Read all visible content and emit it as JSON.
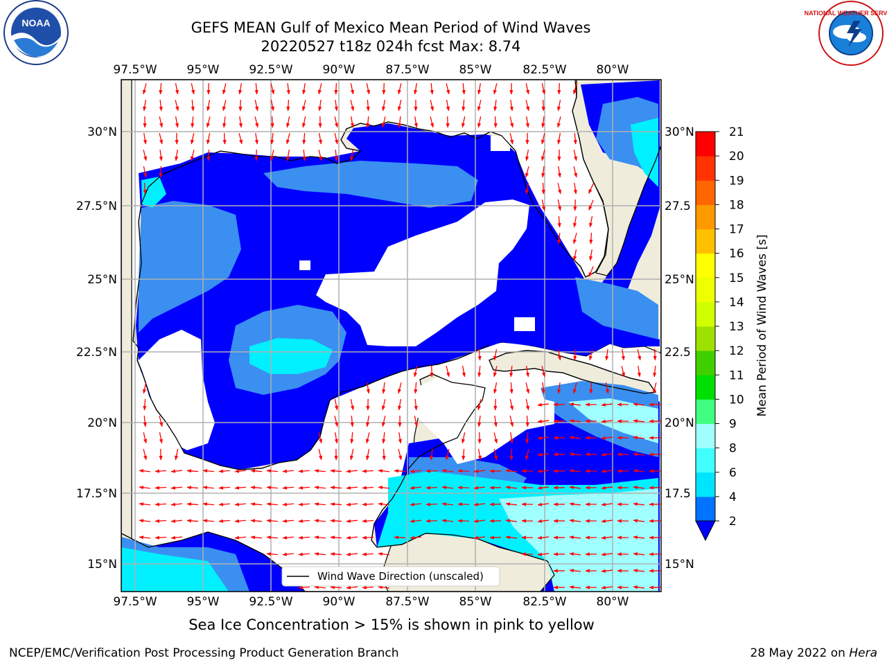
{
  "title": {
    "line1": "GEFS MEAN Gulf of Mexico Mean Period of Wind Waves",
    "line2": "20220527 t18z 024h fcst   Max: 8.74"
  },
  "logos": {
    "left": "noaa-logo",
    "right": "nws-logo",
    "right_text": "NATIONAL WEATHER SERVICE"
  },
  "map": {
    "lon_labels": [
      "97.5°W",
      "95°W",
      "92.5°W",
      "90°W",
      "87.5°W",
      "85°W",
      "82.5°W",
      "80°W"
    ],
    "lat_labels_left": [
      "30°N",
      "27.5°N",
      "25°N",
      "22.5°N",
      "20°N",
      "17.5°N",
      "15°N"
    ],
    "lat_labels_right": [
      "30°N",
      "27.5",
      "25°N",
      "22.5",
      "20°N",
      "17.5",
      "15°N"
    ],
    "lon_range": [
      -98,
      -78.2
    ],
    "lat_range": [
      14.0,
      31.8
    ],
    "land_color": "#efecdc",
    "ocean_no_data_color": "#ffffff",
    "arrow_color": "#ff0000",
    "grid_color": "#b0b0b0"
  },
  "legend": {
    "label": "Wind Wave Direction (unscaled)"
  },
  "colorbar": {
    "label": "Mean Period of Wind Waves [s]",
    "ticks": [
      "2",
      "4",
      "6",
      "8",
      "9",
      "10",
      "11",
      "12",
      "13",
      "14",
      "15",
      "16",
      "17",
      "18",
      "19",
      "20",
      "21"
    ],
    "colors": [
      "#0000ff",
      "#0073ff",
      "#00e5ff",
      "#40ffff",
      "#9fffff",
      "#40ff80",
      "#00e000",
      "#40d000",
      "#9ee000",
      "#d0ff00",
      "#eeff00",
      "#ffff00",
      "#ffc000",
      "#ff9900",
      "#ff6600",
      "#ff3300",
      "#ff0000"
    ]
  },
  "caption": "Sea Ice Concentration > 15% is shown in pink to yellow",
  "footer": {
    "left": "NCEP/EMC/Verification Post Processing Product Generation Branch",
    "right_date": "28 May 2022 on ",
    "right_host": "Hera"
  }
}
